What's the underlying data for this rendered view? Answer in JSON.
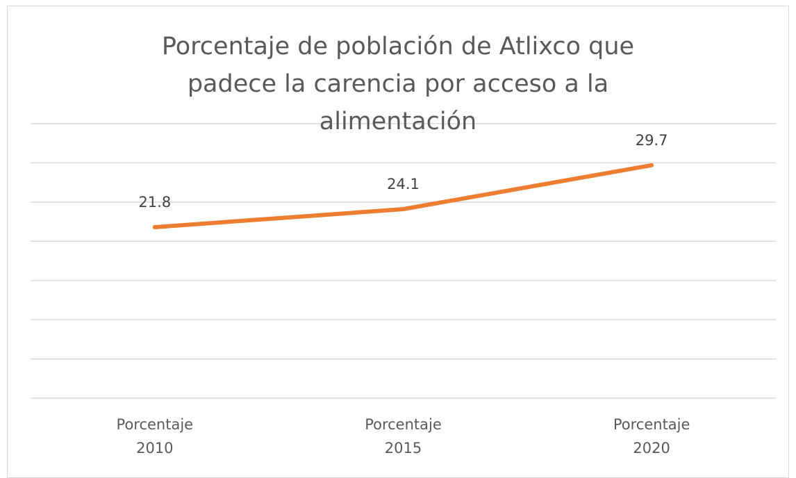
{
  "chart_data": {
    "type": "line",
    "title": "Porcentaje de población de Atlixco que padece la carencia por acceso a la alimentación",
    "categories": [
      "Porcentaje 2010",
      "Porcentaje 2015",
      "Porcentaje 2020"
    ],
    "series": [
      {
        "name": "Porcentaje",
        "color": "#ed7d31",
        "values": [
          21.8,
          24.1,
          29.7
        ]
      }
    ],
    "ylim": [
      0,
      35
    ],
    "yticks": [
      0,
      5,
      10,
      15,
      20,
      25,
      30,
      35
    ],
    "grid": true
  }
}
